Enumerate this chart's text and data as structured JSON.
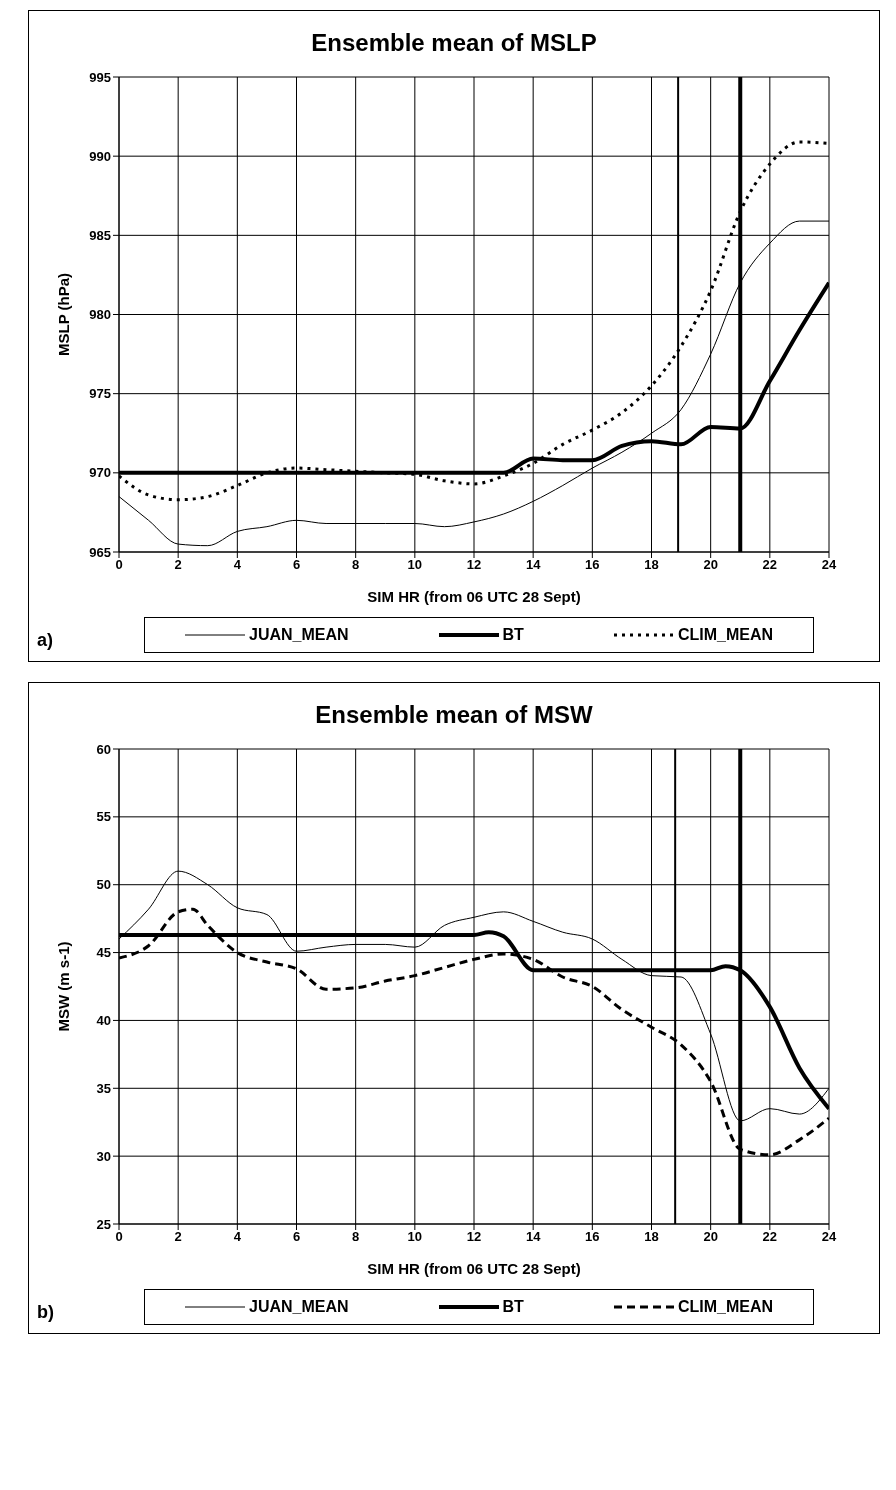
{
  "chart_data": [
    {
      "type": "line",
      "title": "Ensemble mean of MSLP",
      "xlabel": "SIM HR (from 06 UTC 28 Sept)",
      "ylabel": "MSLP (hPa)",
      "xlim": [
        0,
        24
      ],
      "xticks": [
        0,
        2,
        4,
        6,
        8,
        10,
        12,
        14,
        16,
        18,
        20,
        22,
        24
      ],
      "ylim": [
        965,
        995
      ],
      "yticks": [
        965,
        970,
        975,
        980,
        985,
        990,
        995
      ],
      "grid": true,
      "legend": "bottom",
      "annotations": [
        "a)"
      ],
      "ref_lines": [
        {
          "axis": "x",
          "value": 18.9,
          "color": "#000000"
        },
        {
          "axis": "x",
          "value": 21,
          "color": "#000000"
        }
      ],
      "series": [
        {
          "name": "JUAN_MEAN",
          "color": "#000000",
          "line_style": "solid",
          "x": [
            0,
            1,
            2,
            3,
            4,
            5,
            6,
            7,
            8,
            9,
            10,
            11,
            12,
            13,
            14,
            15,
            16,
            17,
            18,
            19,
            20,
            21,
            22,
            23,
            24
          ],
          "values": [
            968.5,
            967,
            965.5,
            965.4,
            966.3,
            966.6,
            967,
            966.8,
            966.8,
            966.8,
            966.8,
            966.6,
            966.9,
            967.4,
            968.2,
            969.2,
            970.3,
            971.3,
            972.5,
            974,
            977.5,
            982,
            984.5,
            985.9,
            985.9
          ]
        },
        {
          "name": "BT",
          "color": "#000000",
          "line_style": "solid",
          "x": [
            0,
            2,
            4,
            6,
            8,
            10,
            12,
            13,
            14,
            15,
            16,
            17,
            18,
            19,
            20,
            21,
            22,
            23,
            24
          ],
          "values": [
            970,
            970,
            970,
            970,
            970,
            970,
            970,
            970,
            970.9,
            970.8,
            970.8,
            971.7,
            972,
            971.8,
            972.9,
            972.8,
            975.8,
            979,
            982
          ]
        },
        {
          "name": "CLIM_MEAN",
          "color": "#000000",
          "line_style": "dotted",
          "x": [
            0,
            1,
            2,
            3,
            4,
            5,
            6,
            7,
            8,
            9,
            10,
            11,
            12,
            13,
            14,
            15,
            16,
            17,
            18,
            19,
            20,
            21,
            22,
            23,
            24
          ],
          "values": [
            969.8,
            968.6,
            968.3,
            968.5,
            969.2,
            970,
            970.3,
            970.2,
            970.1,
            970,
            969.9,
            969.5,
            969.3,
            969.8,
            970.6,
            971.8,
            972.7,
            973.8,
            975.5,
            978,
            981.5,
            986.5,
            989.5,
            990.9,
            990.8
          ]
        }
      ]
    },
    {
      "type": "line",
      "title": "Ensemble mean of MSW",
      "xlabel": "SIM HR (from 06 UTC 28 Sept)",
      "ylabel": "MSW (m s-1)",
      "xlim": [
        0,
        24
      ],
      "xticks": [
        0,
        2,
        4,
        6,
        8,
        10,
        12,
        14,
        16,
        18,
        20,
        22,
        24
      ],
      "ylim": [
        25,
        60
      ],
      "yticks": [
        25,
        30,
        35,
        40,
        45,
        50,
        55,
        60
      ],
      "grid": true,
      "legend": "bottom",
      "annotations": [
        "b)"
      ],
      "ref_lines": [
        {
          "axis": "x",
          "value": 18.8,
          "color": "#000000"
        },
        {
          "axis": "x",
          "value": 21,
          "color": "#000000"
        }
      ],
      "series": [
        {
          "name": "JUAN_MEAN",
          "color": "#000000",
          "line_style": "solid",
          "x": [
            0,
            1,
            2,
            3,
            4,
            5,
            6,
            7,
            8,
            9,
            10,
            11,
            12,
            13,
            14,
            15,
            16,
            17,
            18,
            19,
            20,
            21,
            22,
            23,
            24
          ],
          "values": [
            46,
            48.2,
            51,
            50,
            48.3,
            47.8,
            45.1,
            45.4,
            45.6,
            45.6,
            45.4,
            47,
            47.6,
            48,
            47.3,
            46.5,
            46,
            44.5,
            43.3,
            43.2,
            39,
            32.6,
            33.5,
            33.1,
            35
          ]
        },
        {
          "name": "BT",
          "color": "#000000",
          "line_style": "solid",
          "x": [
            0,
            2,
            4,
            6,
            8,
            10,
            12,
            12.5,
            13,
            14,
            15,
            16,
            17,
            18,
            19,
            20,
            20.5,
            21,
            22,
            23,
            24
          ],
          "values": [
            46.3,
            46.3,
            46.3,
            46.3,
            46.3,
            46.3,
            46.3,
            46.5,
            46.2,
            43.7,
            43.7,
            43.7,
            43.7,
            43.7,
            43.7,
            43.7,
            44,
            43.7,
            41,
            36.5,
            33.5
          ]
        },
        {
          "name": "CLIM_MEAN",
          "color": "#000000",
          "line_style": "dashed",
          "x": [
            0,
            1,
            2,
            2.5,
            3,
            4,
            5,
            6,
            7,
            8,
            9,
            10,
            11,
            12,
            13,
            14,
            15,
            16,
            17,
            18,
            19,
            20,
            21,
            22,
            23,
            24
          ],
          "values": [
            44.6,
            45.5,
            48,
            48.2,
            47,
            45,
            44.3,
            43.8,
            42.3,
            42.4,
            42.9,
            43.3,
            43.9,
            44.5,
            44.9,
            44.5,
            43.2,
            42.5,
            40.8,
            39.5,
            38.2,
            35.5,
            30.5,
            30.1,
            31.2,
            32.8
          ]
        }
      ]
    }
  ]
}
